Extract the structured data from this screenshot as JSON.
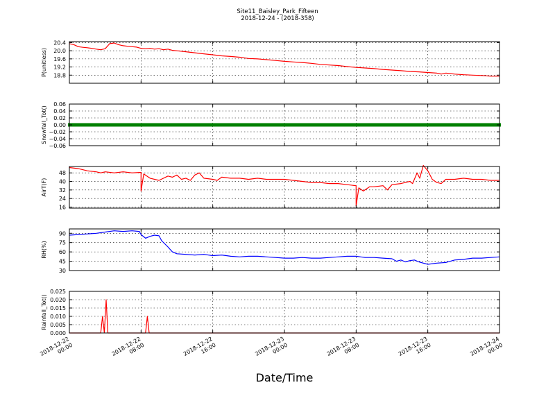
{
  "figure": {
    "title": "Site11_Baisley_Park_Fifteen",
    "subtitle": "2018-12-24 - (2018-358)",
    "xlabel": "Date/Time",
    "x_ticks": [
      {
        "line1": "2018-12-22",
        "line2": "00:00",
        "hours": 0
      },
      {
        "line1": "2018-12-22",
        "line2": "08:00",
        "hours": 8
      },
      {
        "line1": "2018-12-22",
        "line2": "16:00",
        "hours": 16
      },
      {
        "line1": "2018-12-23",
        "line2": "00:00",
        "hours": 24
      },
      {
        "line1": "2018-12-23",
        "line2": "08:00",
        "hours": 32
      },
      {
        "line1": "2018-12-23",
        "line2": "16:00",
        "hours": 40
      },
      {
        "line1": "2018-12-24",
        "line2": "00:00",
        "hours": 48
      }
    ]
  },
  "chart_data": [
    {
      "type": "line",
      "ylabel": "P(unitless)",
      "color": "#ff0000",
      "ylim": [
        18.4,
        20.45
      ],
      "yticks": [
        18.8,
        19.2,
        19.6,
        20.0,
        20.4
      ],
      "ytick_labels": [
        "18.8",
        "19.2",
        "19.6",
        "20.0",
        "20.4"
      ],
      "x_range": [
        "2018-12-22 00:00",
        "2018-12-24 00:00"
      ],
      "points": [
        [
          0,
          20.35
        ],
        [
          0.5,
          20.3
        ],
        [
          1,
          20.2
        ],
        [
          1.5,
          20.17
        ],
        [
          2,
          20.15
        ],
        [
          2.5,
          20.12
        ],
        [
          3,
          20.08
        ],
        [
          3.5,
          20.05
        ],
        [
          4,
          20.1
        ],
        [
          4.5,
          20.35
        ],
        [
          5,
          20.38
        ],
        [
          5.5,
          20.3
        ],
        [
          6,
          20.25
        ],
        [
          6.5,
          20.22
        ],
        [
          7,
          20.2
        ],
        [
          7.5,
          20.18
        ],
        [
          8,
          20.12
        ],
        [
          8.5,
          20.1
        ],
        [
          9,
          20.12
        ],
        [
          9.5,
          20.08
        ],
        [
          10,
          20.1
        ],
        [
          10.5,
          20.05
        ],
        [
          11,
          20.08
        ],
        [
          11.5,
          20.02
        ],
        [
          12,
          20.0
        ],
        [
          13,
          19.95
        ],
        [
          14,
          19.9
        ],
        [
          15,
          19.85
        ],
        [
          16,
          19.8
        ],
        [
          17,
          19.75
        ],
        [
          18,
          19.72
        ],
        [
          19,
          19.68
        ],
        [
          20,
          19.62
        ],
        [
          21,
          19.6
        ],
        [
          22,
          19.56
        ],
        [
          23,
          19.52
        ],
        [
          24,
          19.48
        ],
        [
          25,
          19.45
        ],
        [
          26,
          19.42
        ],
        [
          27,
          19.38
        ],
        [
          28,
          19.33
        ],
        [
          29,
          19.3
        ],
        [
          30,
          19.27
        ],
        [
          31,
          19.22
        ],
        [
          32,
          19.18
        ],
        [
          33,
          19.15
        ],
        [
          34,
          19.12
        ],
        [
          35,
          19.08
        ],
        [
          36,
          19.05
        ],
        [
          37,
          19.02
        ],
        [
          38,
          18.98
        ],
        [
          39,
          18.96
        ],
        [
          40,
          18.93
        ],
        [
          41,
          18.9
        ],
        [
          41.5,
          18.85
        ],
        [
          42,
          18.9
        ],
        [
          43,
          18.85
        ],
        [
          44,
          18.82
        ],
        [
          45,
          18.8
        ],
        [
          46,
          18.78
        ],
        [
          47,
          18.75
        ],
        [
          48,
          18.75
        ]
      ]
    },
    {
      "type": "line",
      "ylabel": "Snowfall_Tot()",
      "color": "#008000",
      "marker": "square",
      "ylim": [
        -0.06,
        0.06
      ],
      "yticks": [
        -0.06,
        -0.04,
        -0.02,
        0.0,
        0.02,
        0.04,
        0.06
      ],
      "ytick_labels": [
        "−0.06",
        "−0.04",
        "−0.02",
        "0.00",
        "0.02",
        "0.04",
        "0.06"
      ],
      "x_range": [
        "2018-12-22 00:00",
        "2018-12-24 00:00"
      ],
      "constant_value": 0.0
    },
    {
      "type": "line",
      "ylabel": "AirT(F)",
      "color": "#ff0000",
      "ylim": [
        15,
        54
      ],
      "yticks": [
        16,
        24,
        32,
        40,
        48
      ],
      "ytick_labels": [
        "16",
        "24",
        "32",
        "40",
        "48"
      ],
      "x_range": [
        "2018-12-22 00:00",
        "2018-12-24 00:00"
      ],
      "points": [
        [
          0,
          53
        ],
        [
          1,
          52
        ],
        [
          2,
          50
        ],
        [
          3,
          49
        ],
        [
          3.5,
          48
        ],
        [
          4,
          49
        ],
        [
          5,
          48
        ],
        [
          6,
          49
        ],
        [
          7,
          48
        ],
        [
          8,
          48.5
        ],
        [
          8,
          31
        ],
        [
          8.3,
          47
        ],
        [
          9,
          43
        ],
        [
          10,
          41
        ],
        [
          11,
          45
        ],
        [
          11.5,
          44
        ],
        [
          12,
          46
        ],
        [
          12.5,
          42
        ],
        [
          13,
          43
        ],
        [
          13.5,
          41
        ],
        [
          14,
          46
        ],
        [
          14.5,
          48
        ],
        [
          15,
          43
        ],
        [
          16,
          42
        ],
        [
          16.5,
          41
        ],
        [
          17,
          44
        ],
        [
          18,
          43
        ],
        [
          19,
          43
        ],
        [
          20,
          42
        ],
        [
          21,
          43
        ],
        [
          22,
          42
        ],
        [
          23,
          42
        ],
        [
          24,
          42
        ],
        [
          25,
          41
        ],
        [
          26,
          40
        ],
        [
          27,
          39
        ],
        [
          28,
          39
        ],
        [
          29,
          38
        ],
        [
          30,
          38
        ],
        [
          31,
          37
        ],
        [
          32,
          36
        ],
        [
          32,
          17
        ],
        [
          32.3,
          34
        ],
        [
          32.8,
          31
        ],
        [
          33.5,
          35
        ],
        [
          34,
          35
        ],
        [
          35,
          36
        ],
        [
          35.5,
          32
        ],
        [
          36,
          37
        ],
        [
          37,
          38
        ],
        [
          38,
          40
        ],
        [
          38.3,
          38
        ],
        [
          38.8,
          48
        ],
        [
          39.1,
          43
        ],
        [
          39.5,
          55
        ],
        [
          40,
          50
        ],
        [
          40.5,
          42
        ],
        [
          41,
          39
        ],
        [
          41.5,
          38
        ],
        [
          42,
          42
        ],
        [
          43,
          42
        ],
        [
          44,
          43
        ],
        [
          45,
          42
        ],
        [
          46,
          42
        ],
        [
          47,
          41
        ],
        [
          48,
          41
        ]
      ]
    },
    {
      "type": "line",
      "ylabel": "RH(%)",
      "color": "#0000ff",
      "ylim": [
        30,
        97
      ],
      "yticks": [
        30,
        45,
        60,
        75,
        90
      ],
      "ytick_labels": [
        "30",
        "45",
        "60",
        "75",
        "90"
      ],
      "x_range": [
        "2018-12-22 00:00",
        "2018-12-24 00:00"
      ],
      "points": [
        [
          0,
          87
        ],
        [
          1,
          88
        ],
        [
          2,
          89
        ],
        [
          3,
          90
        ],
        [
          4,
          92
        ],
        [
          5,
          94
        ],
        [
          6,
          93
        ],
        [
          7,
          94
        ],
        [
          7.8,
          93
        ],
        [
          8,
          88
        ],
        [
          8.5,
          82
        ],
        [
          9,
          85
        ],
        [
          9.5,
          87
        ],
        [
          10,
          86
        ],
        [
          10.3,
          78
        ],
        [
          11,
          68
        ],
        [
          11.5,
          60
        ],
        [
          12,
          57
        ],
        [
          13,
          56
        ],
        [
          14,
          55
        ],
        [
          15,
          56
        ],
        [
          16,
          54
        ],
        [
          17,
          55
        ],
        [
          18,
          53
        ],
        [
          19,
          52
        ],
        [
          20,
          53
        ],
        [
          21,
          53
        ],
        [
          22,
          52
        ],
        [
          23,
          51
        ],
        [
          24,
          50
        ],
        [
          25,
          50
        ],
        [
          26,
          51
        ],
        [
          27,
          50
        ],
        [
          28,
          50
        ],
        [
          29,
          51
        ],
        [
          30,
          52
        ],
        [
          31,
          53
        ],
        [
          32,
          53
        ],
        [
          32.5,
          52
        ],
        [
          33,
          51
        ],
        [
          34,
          51
        ],
        [
          35,
          50
        ],
        [
          36,
          49
        ],
        [
          36.5,
          45
        ],
        [
          37,
          47
        ],
        [
          37.5,
          44
        ],
        [
          38,
          46
        ],
        [
          38.5,
          47
        ],
        [
          39,
          44
        ],
        [
          39.5,
          42
        ],
        [
          40,
          40
        ],
        [
          41,
          42
        ],
        [
          42,
          43
        ],
        [
          43,
          47
        ],
        [
          44,
          48
        ],
        [
          45,
          50
        ],
        [
          46,
          50
        ],
        [
          47,
          51
        ],
        [
          48,
          52
        ]
      ]
    },
    {
      "type": "line",
      "ylabel": "Rainfall_Tot()",
      "color": "#ff0000",
      "ylim": [
        0,
        0.025
      ],
      "yticks": [
        0.0,
        0.005,
        0.01,
        0.015,
        0.02,
        0.025
      ],
      "ytick_labels": [
        "0.000",
        "0.005",
        "0.010",
        "0.015",
        "0.020",
        "0.025"
      ],
      "x_range": [
        "2018-12-22 00:00",
        "2018-12-24 00:00"
      ],
      "points": [
        [
          0,
          0
        ],
        [
          3.5,
          0
        ],
        [
          3.7,
          0.01
        ],
        [
          3.9,
          0
        ],
        [
          4.1,
          0.02
        ],
        [
          4.3,
          0
        ],
        [
          8.5,
          0
        ],
        [
          8.7,
          0.01
        ],
        [
          8.9,
          0
        ],
        [
          48,
          0
        ]
      ]
    }
  ]
}
